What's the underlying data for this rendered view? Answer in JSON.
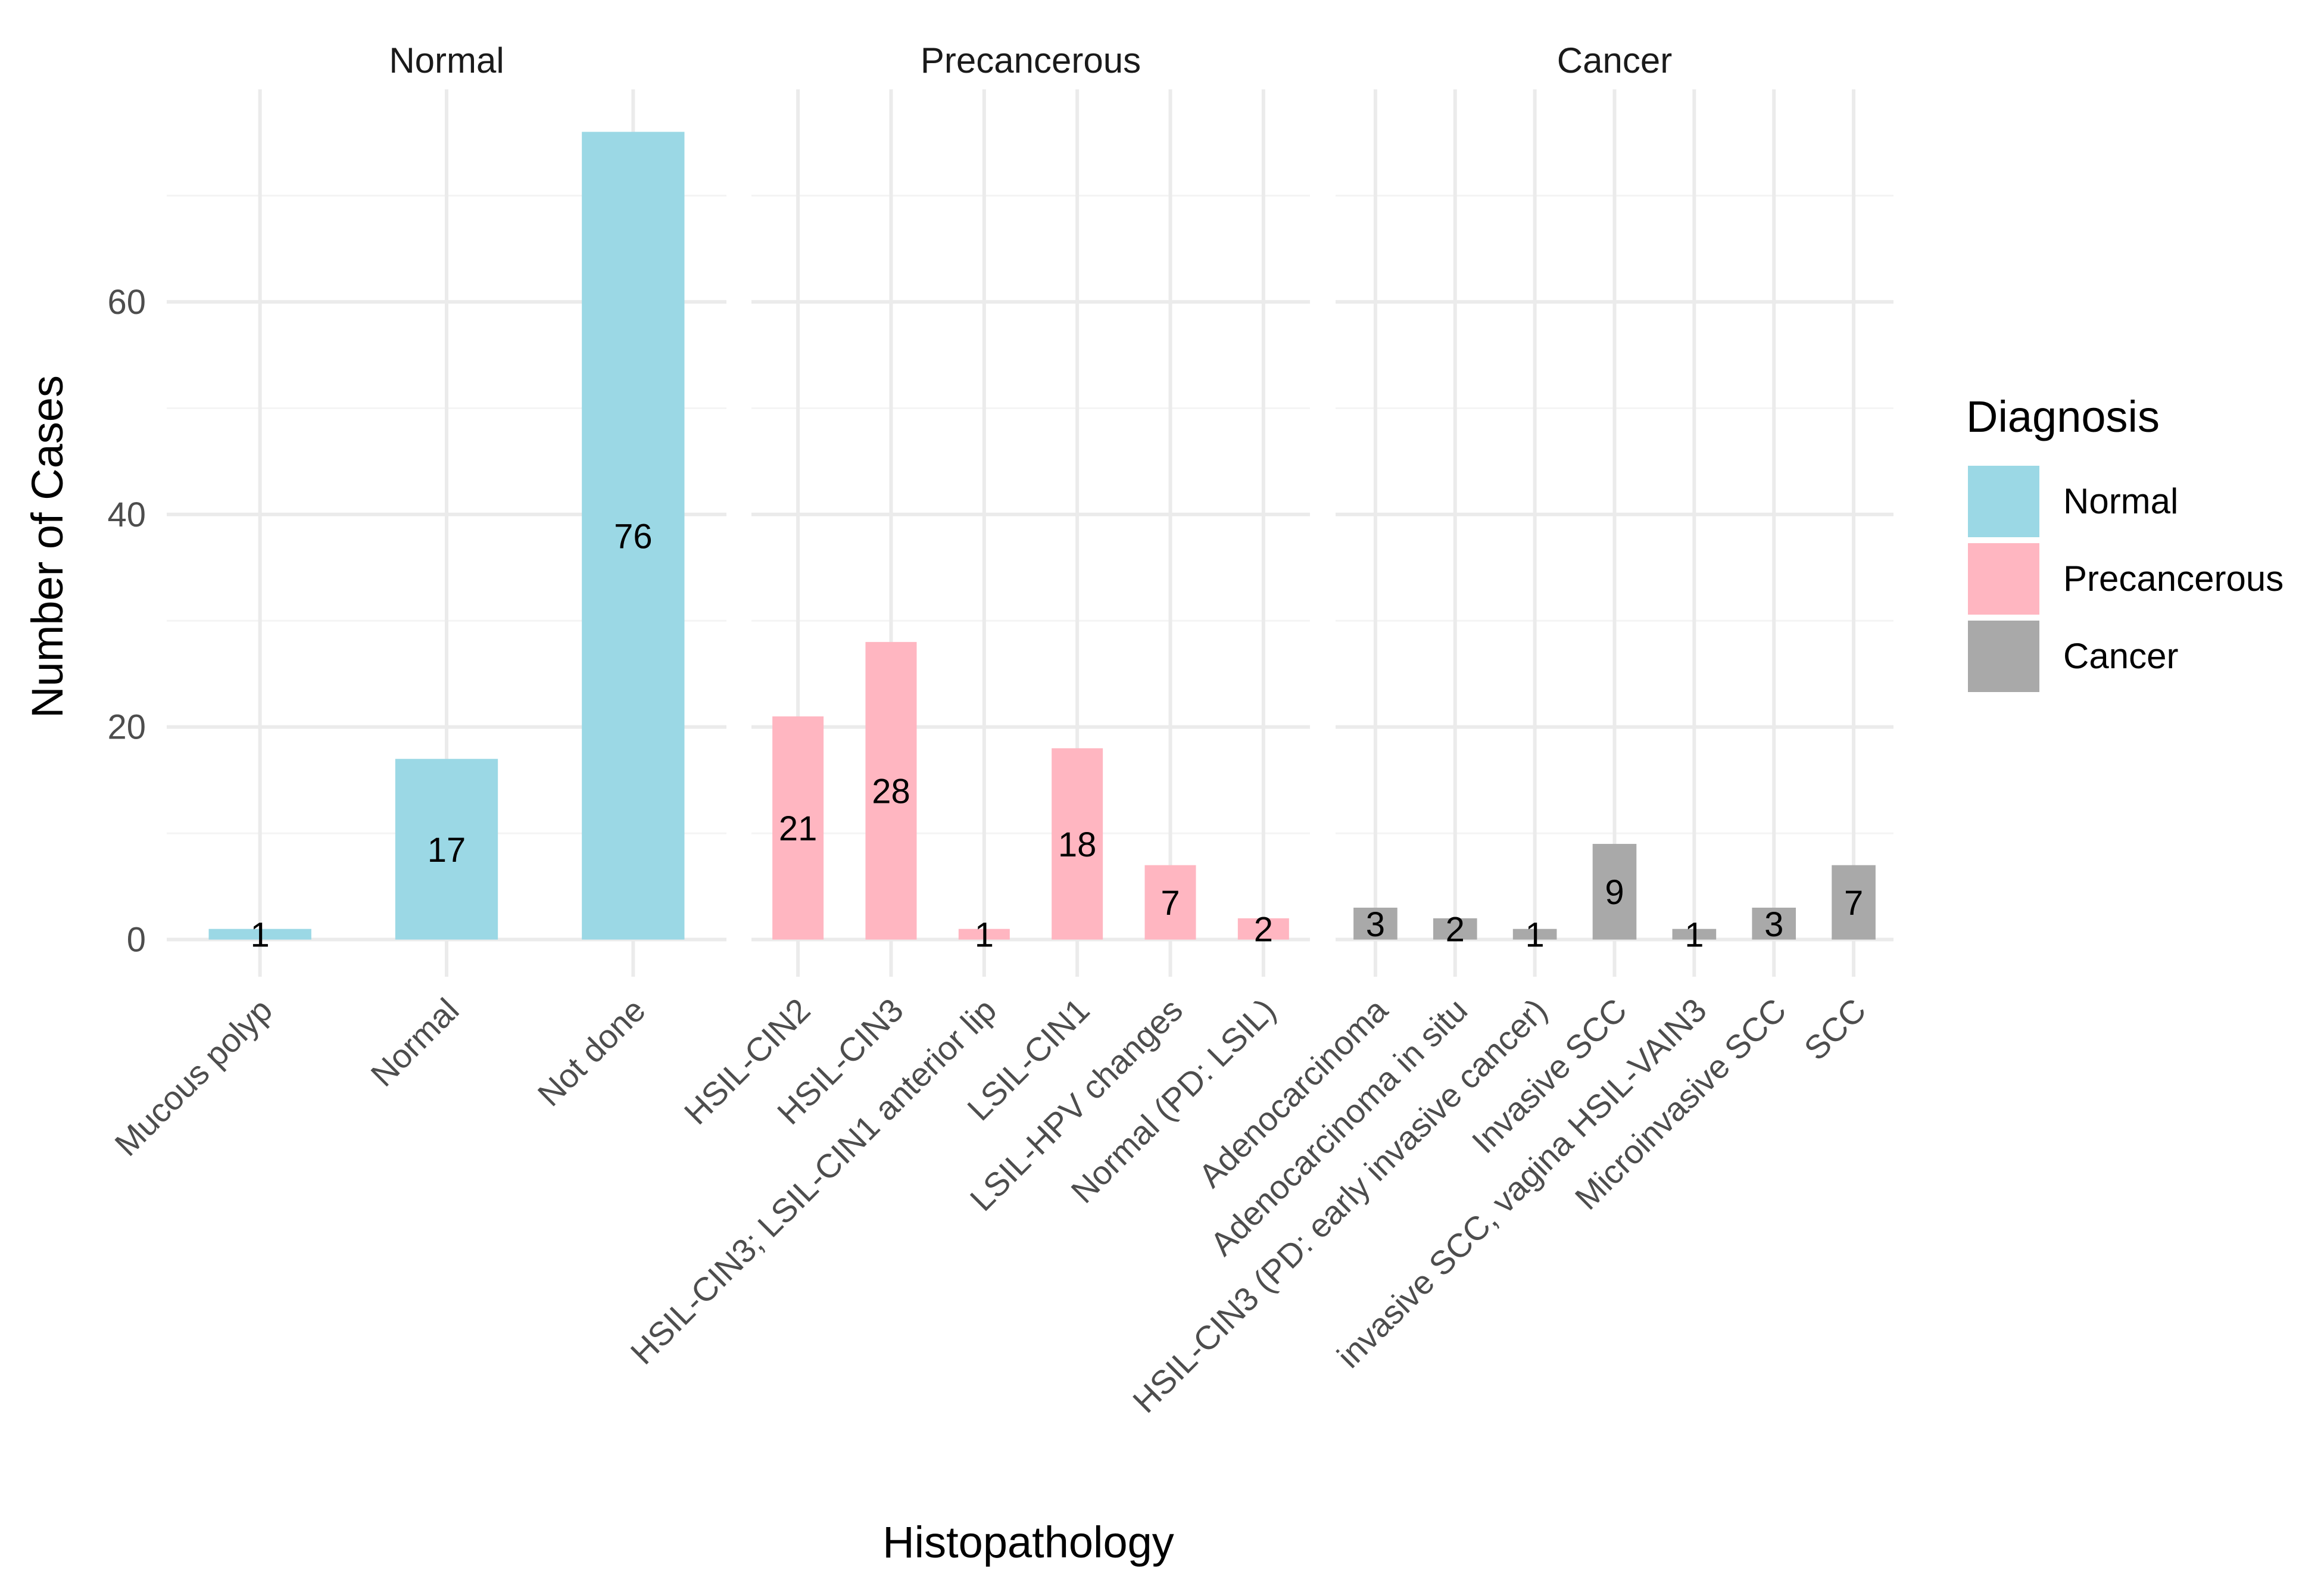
{
  "chart_data": {
    "type": "bar",
    "xlabel": "Histopathology",
    "ylabel": "Number of Cases",
    "ylim": [
      -3.5,
      80
    ],
    "y_ticks": [
      0,
      20,
      40,
      60
    ],
    "grid": true,
    "legend": {
      "title": "Diagnosis",
      "position": "right",
      "entries": [
        {
          "label": "Normal",
          "color": "#9bd8e5"
        },
        {
          "label": "Precancerous",
          "color": "#ffb6c1"
        },
        {
          "label": "Cancer",
          "color": "#a9a9a9"
        }
      ]
    },
    "facets": [
      {
        "title": "Normal",
        "color": "#9bd8e5",
        "categories": [
          "Mucous polyp",
          "Normal",
          "Not done"
        ],
        "values": [
          1,
          17,
          76
        ]
      },
      {
        "title": "Precancerous",
        "color": "#ffb6c1",
        "categories": [
          "HSIL-CIN2",
          "HSIL-CIN3",
          "HSIL-CIN3; LSIL-CIN1 anterior lip",
          "LSIL-CIN1",
          "LSIL-HPV changes",
          "Normal (PD: LSIL)"
        ],
        "values": [
          21,
          28,
          1,
          18,
          7,
          2
        ]
      },
      {
        "title": "Cancer",
        "color": "#a9a9a9",
        "categories": [
          "Adenocarcinoma",
          "Adenocarcinoma in situ",
          "HSIL-CIN3 (PD: early invasive cancer)",
          "Invasive SCC",
          "invasive SCC, vagina HSIL-VAIN3",
          "Microinvasive SCC",
          "SCC"
        ],
        "values": [
          3,
          2,
          1,
          9,
          1,
          3,
          7
        ]
      }
    ]
  }
}
